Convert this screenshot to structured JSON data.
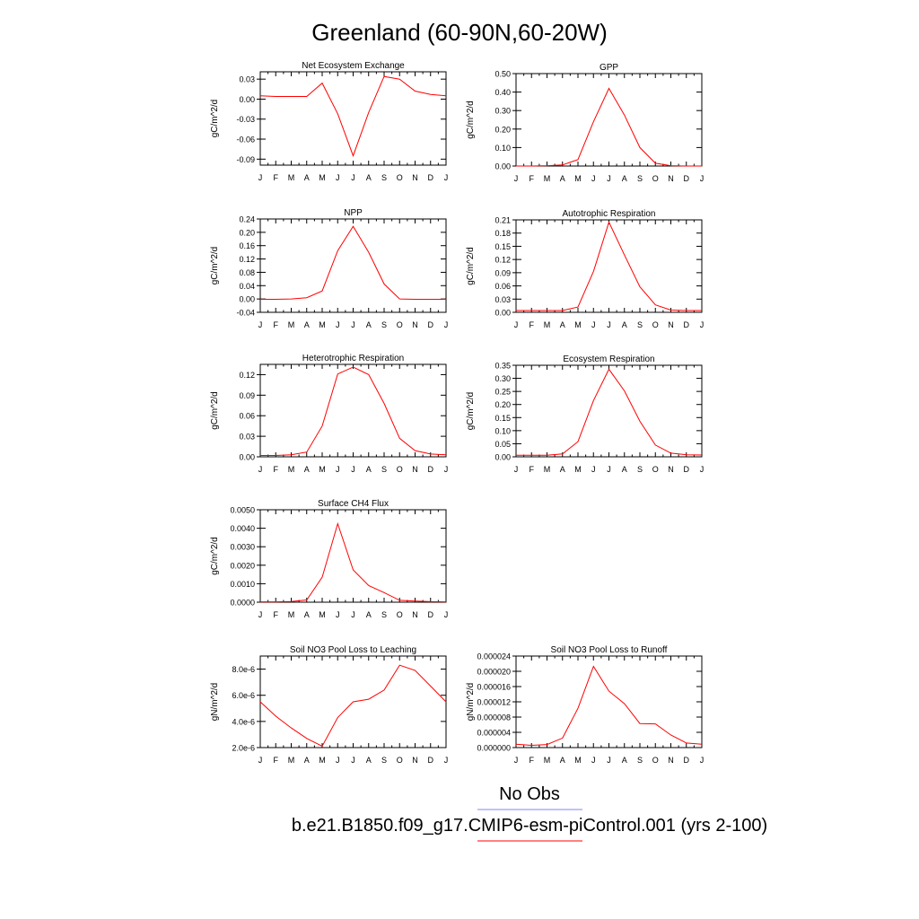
{
  "title": "Greenland (60-90N,60-20W)",
  "legend": {
    "entries": [
      {
        "label": "No Obs",
        "color": "#8080ff"
      },
      {
        "label": "b.e21.B1850.f09_g17.CMIP6-esm-piControl.001 (yrs 2-100)",
        "color": "#ff0000"
      }
    ]
  },
  "chart_data": [
    {
      "type": "line",
      "title": "Net Ecosystem Exchange",
      "xlabel": "",
      "ylabel": "gC/m^2/d",
      "categories": [
        "J",
        "F",
        "M",
        "A",
        "M",
        "J",
        "J",
        "A",
        "S",
        "O",
        "N",
        "D",
        "J"
      ],
      "ylim": [
        -0.099,
        0.041
      ],
      "yticks": [
        0.03,
        0.0,
        -0.03,
        -0.06,
        -0.09
      ],
      "ytick_labels": [
        "0.03",
        "0.00",
        "-0.03",
        "-0.06",
        "-0.09"
      ],
      "series": [
        {
          "color": "#ff0000",
          "values": [
            0.005,
            0.004,
            0.004,
            0.004,
            0.024,
            -0.022,
            -0.085,
            -0.02,
            0.034,
            0.03,
            0.012,
            0.007,
            0.005
          ]
        }
      ]
    },
    {
      "type": "line",
      "title": "GPP",
      "xlabel": "",
      "ylabel": "gC/m^2/d",
      "categories": [
        "J",
        "F",
        "M",
        "A",
        "M",
        "J",
        "J",
        "A",
        "S",
        "O",
        "N",
        "D",
        "J"
      ],
      "ylim": [
        0.0,
        0.5
      ],
      "yticks": [
        0.0,
        0.1,
        0.2,
        0.3,
        0.4,
        0.5
      ],
      "ytick_labels": [
        "0.00",
        "0.10",
        "0.20",
        "0.30",
        "0.40",
        "0.50"
      ],
      "series": [
        {
          "color": "#ff0000",
          "values": [
            0.0,
            0.0,
            0.002,
            0.006,
            0.035,
            0.24,
            0.42,
            0.275,
            0.1,
            0.015,
            0.002,
            0.0,
            0.0
          ]
        }
      ]
    },
    {
      "type": "line",
      "title": "NPP",
      "xlabel": "",
      "ylabel": "gC/m^2/d",
      "categories": [
        "J",
        "F",
        "M",
        "A",
        "M",
        "J",
        "J",
        "A",
        "S",
        "O",
        "N",
        "D",
        "J"
      ],
      "ylim": [
        -0.04,
        0.24
      ],
      "yticks": [
        -0.04,
        0.0,
        0.04,
        0.08,
        0.12,
        0.16,
        0.2,
        0.24
      ],
      "ytick_labels": [
        "-0.04",
        "0.00",
        "0.04",
        "0.08",
        "0.12",
        "0.16",
        "0.20",
        "0.24"
      ],
      "series": [
        {
          "color": "#ff0000",
          "values": [
            -0.001,
            -0.001,
            0.0,
            0.004,
            0.024,
            0.145,
            0.218,
            0.14,
            0.045,
            0.0,
            -0.001,
            -0.001,
            -0.001
          ]
        }
      ]
    },
    {
      "type": "line",
      "title": "Autotrophic Respiration",
      "xlabel": "",
      "ylabel": "gC/m^2/d",
      "categories": [
        "J",
        "F",
        "M",
        "A",
        "M",
        "J",
        "J",
        "A",
        "S",
        "O",
        "N",
        "D",
        "J"
      ],
      "ylim": [
        0.0,
        0.21
      ],
      "yticks": [
        0.0,
        0.03,
        0.06,
        0.09,
        0.12,
        0.15,
        0.18,
        0.21
      ],
      "ytick_labels": [
        "0.00",
        "0.03",
        "0.06",
        "0.09",
        "0.12",
        "0.15",
        "0.18",
        "0.21"
      ],
      "series": [
        {
          "color": "#ff0000",
          "values": [
            0.004,
            0.004,
            0.004,
            0.004,
            0.012,
            0.093,
            0.205,
            0.13,
            0.058,
            0.017,
            0.005,
            0.004,
            0.004
          ]
        }
      ]
    },
    {
      "type": "line",
      "title": "Heterotrophic Respiration",
      "xlabel": "",
      "ylabel": "gC/m^2/d",
      "categories": [
        "J",
        "F",
        "M",
        "A",
        "M",
        "J",
        "J",
        "A",
        "S",
        "O",
        "N",
        "D",
        "J"
      ],
      "ylim": [
        0.0,
        0.135
      ],
      "yticks": [
        0.0,
        0.03,
        0.06,
        0.09,
        0.12
      ],
      "ytick_labels": [
        "0.00",
        "0.03",
        "0.06",
        "0.09",
        "0.12"
      ],
      "series": [
        {
          "color": "#ff0000",
          "values": [
            0.002,
            0.002,
            0.003,
            0.007,
            0.045,
            0.121,
            0.131,
            0.12,
            0.078,
            0.027,
            0.009,
            0.004,
            0.003
          ]
        }
      ]
    },
    {
      "type": "line",
      "title": "Ecosystem Respiration",
      "xlabel": "",
      "ylabel": "gC/m^2/d",
      "categories": [
        "J",
        "F",
        "M",
        "A",
        "M",
        "J",
        "J",
        "A",
        "S",
        "O",
        "N",
        "D",
        "J"
      ],
      "ylim": [
        0.0,
        0.35
      ],
      "yticks": [
        0.0,
        0.05,
        0.1,
        0.15,
        0.2,
        0.25,
        0.3,
        0.35
      ],
      "ytick_labels": [
        "0.00",
        "0.05",
        "0.10",
        "0.15",
        "0.20",
        "0.25",
        "0.30",
        "0.35"
      ],
      "series": [
        {
          "color": "#ff0000",
          "values": [
            0.006,
            0.006,
            0.006,
            0.011,
            0.058,
            0.215,
            0.335,
            0.252,
            0.136,
            0.045,
            0.014,
            0.008,
            0.007
          ]
        }
      ]
    },
    {
      "type": "line",
      "title": "Surface CH4 Flux",
      "xlabel": "",
      "ylabel": "gC/m^2/d",
      "categories": [
        "J",
        "F",
        "M",
        "A",
        "M",
        "J",
        "J",
        "A",
        "S",
        "O",
        "N",
        "D",
        "J"
      ],
      "ylim": [
        0.0,
        0.005
      ],
      "yticks": [
        0.0,
        0.001,
        0.002,
        0.003,
        0.004,
        0.005
      ],
      "ytick_labels": [
        "0.0000",
        "0.0010",
        "0.0020",
        "0.0030",
        "0.0040",
        "0.0050"
      ],
      "series": [
        {
          "color": "#ff0000",
          "values": [
            2e-05,
            2e-05,
            4e-05,
            0.00012,
            0.00135,
            0.00425,
            0.00175,
            0.0009,
            0.00052,
            0.0001,
            6e-05,
            3e-05,
            2e-05
          ]
        }
      ]
    },
    {
      "type": "line",
      "title": "Soil NO3 Pool Loss to Leaching",
      "xlabel": "",
      "ylabel": "gN/m^2/d",
      "categories": [
        "J",
        "F",
        "M",
        "A",
        "M",
        "J",
        "J",
        "A",
        "S",
        "O",
        "N",
        "D",
        "J"
      ],
      "ylim": [
        2e-06,
        9e-06
      ],
      "yticks": [
        2e-06,
        4e-06,
        6e-06,
        8e-06
      ],
      "ytick_labels": [
        "2.0e-6",
        "4.0e-6",
        "6.0e-6",
        "8.0e-6"
      ],
      "series": [
        {
          "color": "#ff0000",
          "values": [
            5.5e-06,
            4.4e-06,
            3.5e-06,
            2.7e-06,
            2.1e-06,
            4.3e-06,
            5.5e-06,
            5.7e-06,
            6.4e-06,
            8.3e-06,
            7.9e-06,
            6.7e-06,
            5.5e-06
          ]
        }
      ]
    },
    {
      "type": "line",
      "title": "Soil NO3 Pool Loss to Runoff",
      "xlabel": "",
      "ylabel": "gN/m^2/d",
      "categories": [
        "J",
        "F",
        "M",
        "A",
        "M",
        "J",
        "J",
        "A",
        "S",
        "O",
        "N",
        "D",
        "J"
      ],
      "ylim": [
        0.0,
        2.4e-05
      ],
      "yticks": [
        0.0,
        4e-06,
        8e-06,
        1.2e-05,
        1.6e-05,
        2e-05,
        2.4e-05
      ],
      "ytick_labels": [
        "0.000000",
        "0.000004",
        "0.000008",
        "0.000012",
        "0.000016",
        "0.000020",
        "0.000024"
      ],
      "series": [
        {
          "color": "#ff0000",
          "values": [
            9e-07,
            6e-07,
            8e-07,
            2.5e-06,
            1.03e-05,
            2.13e-05,
            1.48e-05,
            1.15e-05,
            6.3e-06,
            6.2e-06,
            3.3e-06,
            1.2e-06,
            9e-07
          ]
        }
      ]
    }
  ]
}
